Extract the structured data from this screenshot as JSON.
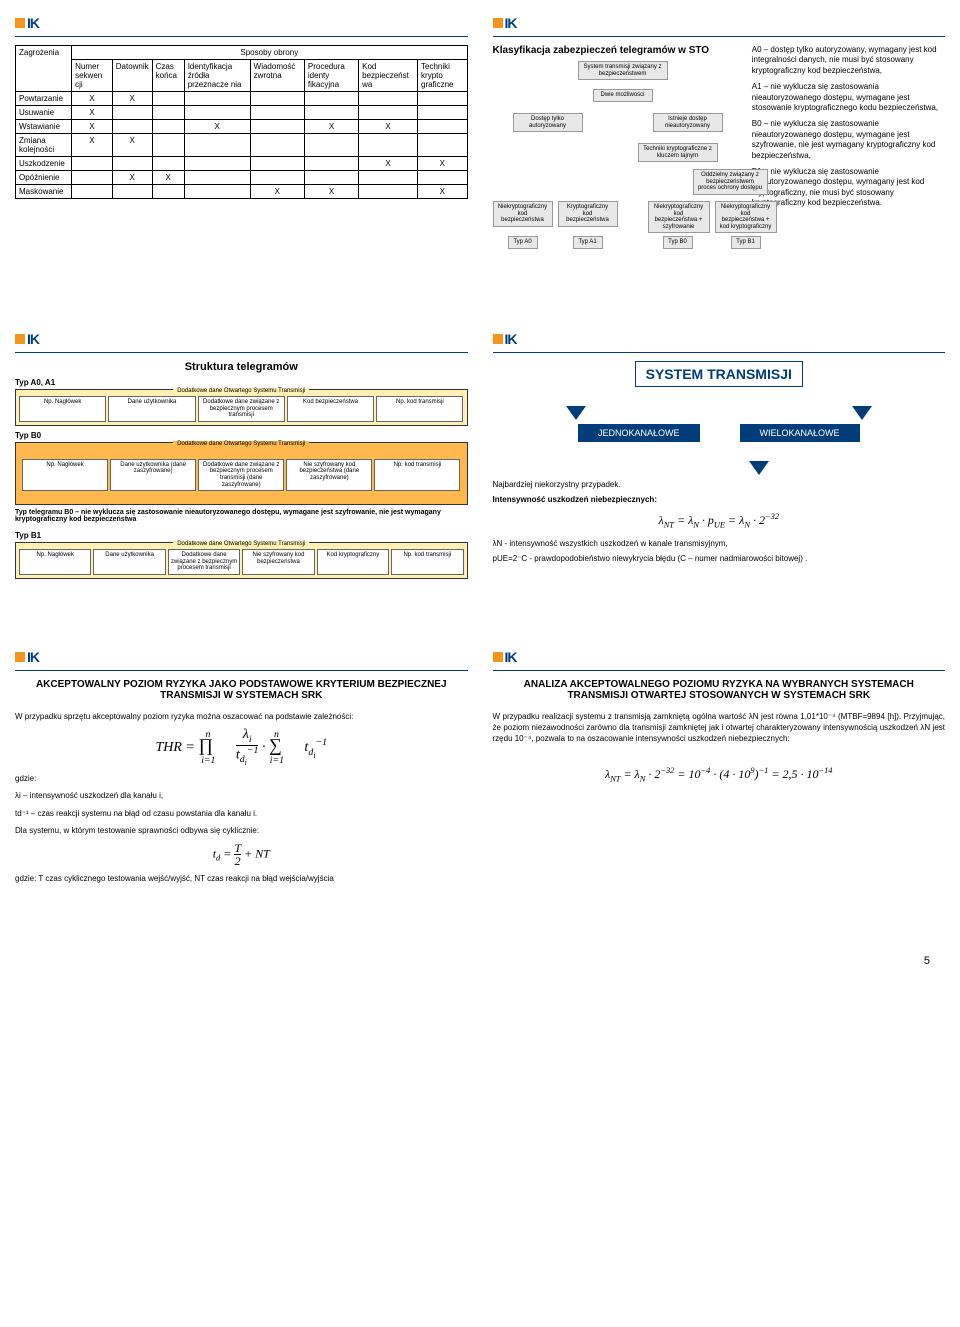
{
  "logo_text": "IK",
  "page_number": "5",
  "slide1": {
    "col_zagrozenia": "Zagrożenia",
    "col_sposoby": "Sposoby obrony",
    "cols": [
      "Numer sekwen cji",
      "Datownik",
      "Czas końca",
      "Identyfikacja źródła przeznacze nia",
      "Wiadomość zwrotna",
      "Procedura identy fikacyjna",
      "Kod bezpieczeńst wa",
      "Techniki krypto graficzne"
    ],
    "rows": [
      {
        "name": "Powtarzanie",
        "cells": [
          "X",
          "X",
          "",
          "",
          "",
          "",
          "",
          ""
        ]
      },
      {
        "name": "Usuwanie",
        "cells": [
          "X",
          "",
          "",
          "",
          "",
          "",
          "",
          ""
        ]
      },
      {
        "name": "Wstawianie",
        "cells": [
          "X",
          "",
          "",
          "X",
          "",
          "X",
          "X",
          ""
        ]
      },
      {
        "name": "Zmiana kolejności",
        "cells": [
          "X",
          "X",
          "",
          "",
          "",
          "",
          "",
          ""
        ]
      },
      {
        "name": "Uszkodzenie",
        "cells": [
          "",
          "",
          "",
          "",
          "",
          "",
          "X",
          "X"
        ]
      },
      {
        "name": "Opóźnienie",
        "cells": [
          "",
          "X",
          "X",
          "",
          "",
          "",
          "",
          ""
        ]
      },
      {
        "name": "Maskowanie",
        "cells": [
          "",
          "",
          "",
          "",
          "X",
          "X",
          "",
          "X"
        ]
      }
    ]
  },
  "slide2": {
    "title": "Klasyfikacja zabezpieczeń telegramów w STO",
    "nodes": {
      "root": "System transmisji związany z bezpieczeństwem",
      "dwie": "Dwie możliwości",
      "autoryz": "Dostęp tylko autoryzowany",
      "nieaut": "Istnieje dostęp nieautoryzowany",
      "techniki": "Techniki kryptograficzne z kluczem tajnym",
      "oddzielny": "Oddzielny związany z bezpieczeństwem proces ochrony dostępu",
      "a0": "Niekryptograficzny kod bezpieczeństwa",
      "a1": "Kryptograficzny kod bezpieczeństwa",
      "b0": "Niekryptograficzny kod bezpieczeństwa + szyfrowanie",
      "b1": "Niekryptograficzny kod bezpieczeństwa + kod kryptograficzny",
      "ta0": "Typ A0",
      "ta1": "Typ A1",
      "tb0": "Typ B0",
      "tb1": "Typ B1"
    },
    "text": {
      "p1": "A0 – dostęp tylko autoryzowany, wymagany jest kod integralności danych, nie musi być stosowany kryptograficzny kod bezpieczeństwa,",
      "p2": "A1 – nie wyklucza się zastosowania nieautoryzowanego dostępu, wymagane jest stosowanie kryptograficznego kodu bezpieczeństwa,",
      "p3": "B0 – nie wyklucza się zastosowanie nieautoryzowanego dostępu, wymagane jest szyfrowanie, nie jest wymagany kryptograficzny kod bezpieczeństwa,",
      "p4": "B1 – nie wyklucza się zastosowanie nieautoryzowanego dostępu, wymagany jest kod kryptograficzny, nie musi być stosowany kryptograficzny kod bezpieczeństwa."
    }
  },
  "slide3": {
    "title": "Struktura telegramów",
    "band_title": "Dodatkowe dane Otwartego Systemu Transmisji",
    "typ_a": "Typ A0, A1",
    "typ_b0": "Typ B0",
    "typ_b1": "Typ B1",
    "cells_a": [
      "Np. Nagłówek",
      "Dane użytkownika",
      "Dodatkowe dane związane z bezpiecznym procesem transmisji",
      "Kod bezpieczeństwa",
      "Np. kod transmisji"
    ],
    "cells_b0": [
      "Np. Nagłówek",
      "Dane użytkownika (dane zaszyfrowane)",
      "Dodatkowe dane związane z bezpiecznym procesem transmisji (dane zaszyfrowane)",
      "Nie szyfrowany kod bezpieczeństwa (dane zaszyfrowane)",
      "Np. kod transmisji"
    ],
    "cells_b1": [
      "Np. Nagłówek",
      "Dane użytkownika",
      "Dodatkowe dane związane z bezpiecznym procesem transmisji",
      "Nie szyfrowany kod bezpieczeństwa",
      "Kod kryptograficzny",
      "Np. kod transmisji"
    ],
    "note_b0": "Typ telegramu B0 – nie wyklucza się zastosowanie nieautoryzowanego dostępu, wymagane jest szyfrowanie, nie jest wymagany kryptograficzny kod bezpieczeństwa"
  },
  "slide4": {
    "title": "SYSTEM TRANSMISJI",
    "box1": "JEDNOKANAŁOWE",
    "box2": "WIELOKANAŁOWE",
    "p1": "Najbardziej niekorzystny przypadek.",
    "p2": "Intensywność uszkodzeń niebezpiecznych:",
    "formula": "λNT = λN · pUE = λN · 2⁻³²",
    "p3": "λN - intensywność wszystkich uszkodzeń w kanale transmisyjnym,",
    "p4": "pUE=2⁻C - prawdopodobieństwo niewykrycia błędu (C – numer nadmiarowości bitowej) ."
  },
  "slide5": {
    "title": "AKCEPTOWALNY POZIOM RYZYKA JAKO PODSTAWOWE KRYTERIUM BEZPIECZNEJ TRANSMISJI W SYSTEMACH SRK",
    "p1": "W przypadku sprzętu akceptowalny poziom ryzyka można oszacować na podstawie zależności:",
    "gdzie": "gdzie:",
    "g1": "λi – intensywność uszkodzeń dla kanału i,",
    "g2": "td⁻¹ – czas reakcji systemu na błąd od czasu powstania dla kanału i.",
    "p2": "Dla systemu, w którym testowanie sprawności odbywa się cyklicznie:",
    "p3": "gdzie: T czas cyklicznego testowania wejść/wyjść, NT czas reakcji na błąd wejścia/wyjścia"
  },
  "slide6": {
    "title": "ANALIZA AKCEPTOWALNEGO POZIOMU RYZYKA NA WYBRANYCH SYSTEMACH TRANSMISJI OTWARTEJ STOSOWANYCH W SYSTEMACH SRK",
    "p1": "W przypadku realizacji systemu z transmisją zamkniętą ogólna wartość λN jest równa 1,01*10⁻⁴ (MTBF=9894 [h]). Przyjmując, że poziom niezawodności zarówno dla transmisji zamkniętej jak i otwartej charakteryzowany intensywnością uszkodzeń λN jest rzędu 10⁻⁴, pozwala to na oszacowanie intensywności uszkodzeń niebezpiecznych:",
    "formula": "λNT = λN · 2⁻³² = 10⁻⁴ · (4 · 10⁹)⁻¹ = 2,5 · 10⁻¹⁴"
  }
}
